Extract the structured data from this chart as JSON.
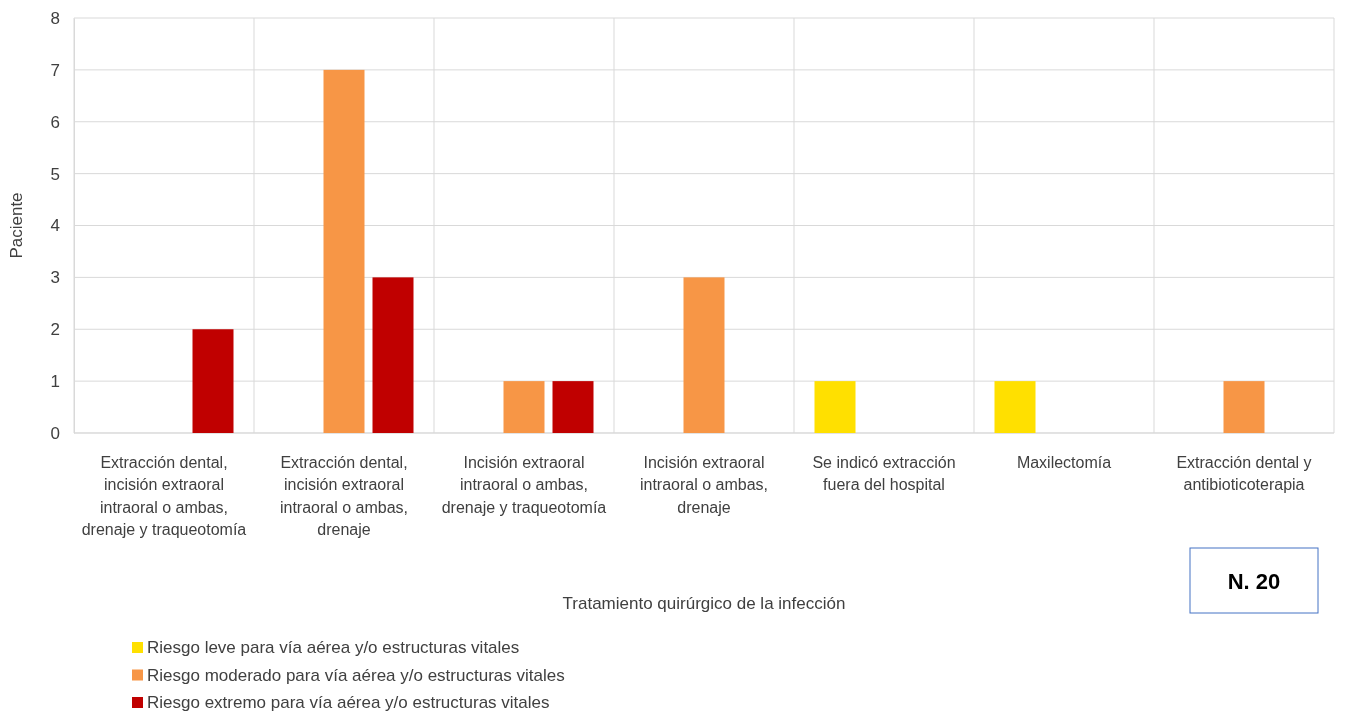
{
  "chart_data": {
    "type": "bar",
    "categories": [
      "Extracción dental, incisión extraoral intraoral o ambas, drenaje y traqueotomía",
      "Extracción dental, incisión extraoral intraoral o ambas, drenaje",
      "Incisión extraoral intraoral o ambas, drenaje y traqueotomía",
      "Incisión extraoral intraoral o ambas, drenaje",
      "Se indicó extracción fuera del hospital",
      "Maxilectomía",
      "Extracción dental y antibioticoterapia"
    ],
    "series": [
      {
        "name": "Riesgo leve para vía aérea y/o estructuras vitales",
        "color": "#ffe000",
        "values": [
          null,
          null,
          null,
          null,
          1,
          1,
          null
        ]
      },
      {
        "name": "Riesgo moderado para vía aérea y/o estructuras vitales",
        "color": "#f79646",
        "values": [
          null,
          7,
          1,
          3,
          null,
          null,
          1
        ]
      },
      {
        "name": "Riesgo extremo para vía aérea y/o estructuras vitales",
        "color": "#c00000",
        "values": [
          2,
          3,
          1,
          null,
          null,
          null,
          null
        ]
      }
    ],
    "xlabel": "Tratamiento quirúrgico de la infección",
    "ylabel": "Paciente",
    "ylim": [
      0,
      8
    ],
    "yticks": [
      0,
      1,
      2,
      3,
      4,
      5,
      6,
      7,
      8
    ],
    "grid": true,
    "legend": "bottom left",
    "annotations": [
      "N. 20"
    ]
  }
}
